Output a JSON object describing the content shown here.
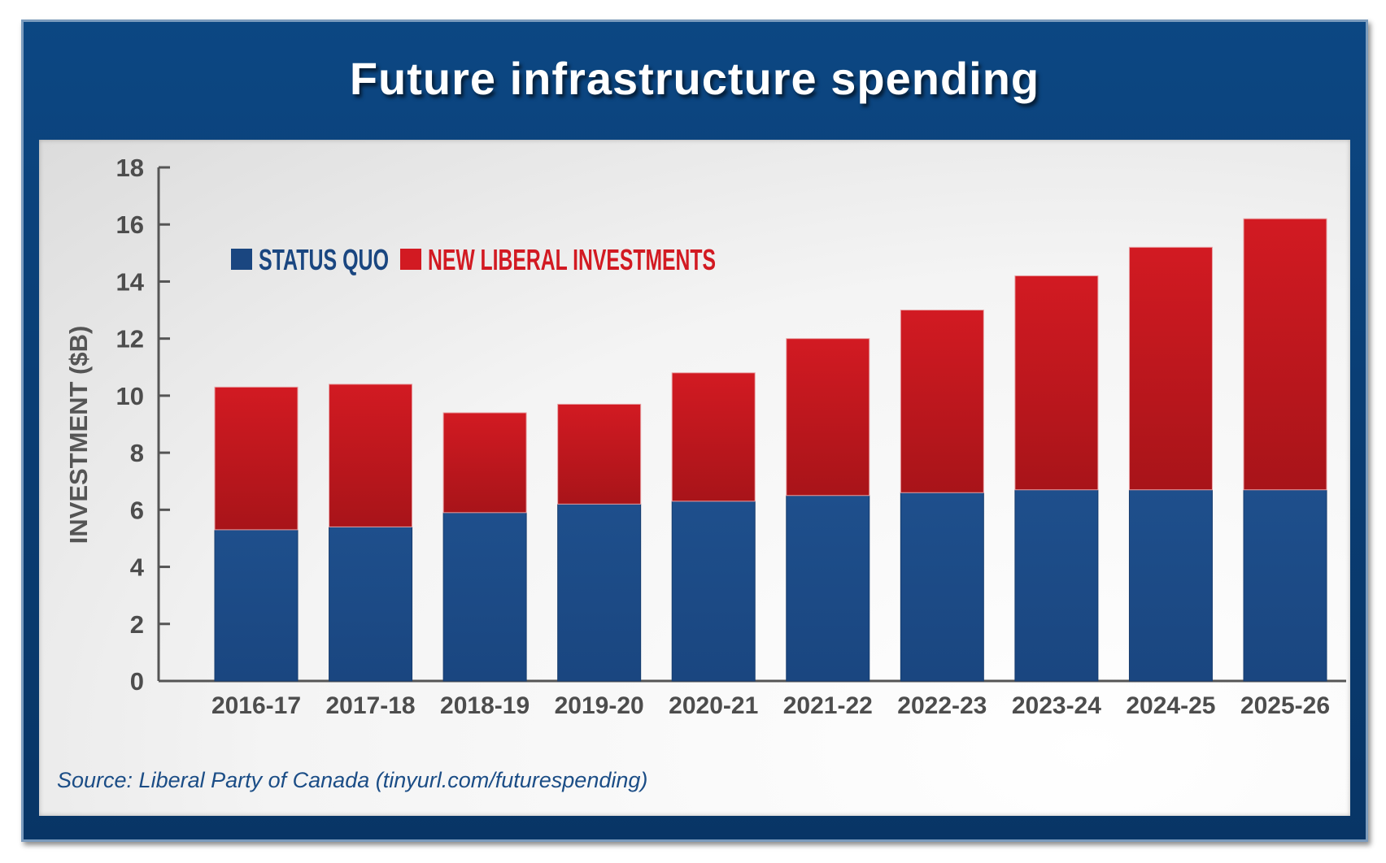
{
  "title": "Future infrastructure spending",
  "source": "Source: Liberal Party of Canada (tinyurl.com/futurespending)",
  "colors": {
    "status_quo": "#1a4680",
    "new_liberal": "#d21a22",
    "frame": "#0a3d73"
  },
  "chart_data": {
    "type": "bar",
    "stacked": true,
    "categories": [
      "2016-17",
      "2017-18",
      "2018-19",
      "2019-20",
      "2020-21",
      "2021-22",
      "2022-23",
      "2023-24",
      "2024-25",
      "2025-26"
    ],
    "series": [
      {
        "name": "STATUS QUO",
        "values": [
          5.3,
          5.4,
          5.9,
          6.2,
          6.3,
          6.5,
          6.6,
          6.7,
          6.7,
          6.7
        ]
      },
      {
        "name": "NEW LIBERAL INVESTMENTS",
        "values": [
          5.0,
          5.0,
          3.5,
          3.5,
          4.5,
          5.5,
          6.4,
          7.5,
          8.5,
          9.5
        ]
      }
    ],
    "xlabel": "",
    "ylabel": "INVESTMENT ($B)",
    "ylim": [
      0,
      18
    ],
    "yticks": [
      0,
      2,
      4,
      6,
      8,
      10,
      12,
      14,
      16,
      18
    ],
    "grid": false,
    "legend_position": "top-left"
  }
}
